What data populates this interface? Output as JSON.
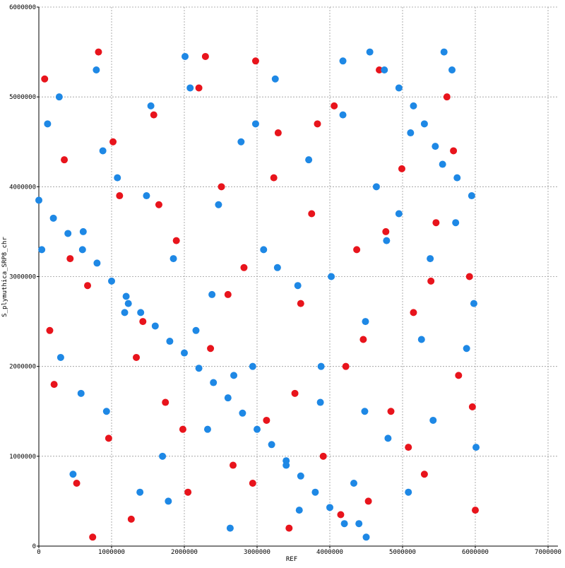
{
  "chart_data": {
    "type": "scatter",
    "x_label": "REF",
    "y_label": "S_plymuthica_SRP8_chr",
    "xlim": [
      0,
      7000000
    ],
    "ylim": [
      0,
      6000000
    ],
    "xticks": [
      0,
      1000000,
      2000000,
      3000000,
      4000000,
      5000000,
      6000000,
      7000000
    ],
    "yticks": [
      0,
      1000000,
      2000000,
      3000000,
      4000000,
      5000000,
      6000000
    ],
    "grid": true,
    "series": [
      {
        "color": "#e8141c",
        "x": [
          80000,
          210000,
          350000,
          520000,
          670000,
          820000,
          960000,
          1110000,
          1270000,
          1430000,
          1580000,
          1740000,
          1890000,
          2050000,
          2200000,
          2360000,
          2510000,
          2670000,
          2820000,
          2980000,
          3130000,
          3290000,
          3440000,
          3600000,
          3750000,
          3910000,
          4060000,
          4220000,
          4370000,
          4530000,
          4680000,
          4840000,
          4990000,
          5150000,
          5300000,
          5460000,
          5610000,
          5770000,
          5920000,
          6000000,
          150000,
          430000,
          740000,
          1020000,
          1340000,
          1650000,
          1980000,
          2290000,
          2600000,
          2940000,
          3230000,
          3520000,
          3830000,
          4150000,
          4460000,
          4770000,
          5080000,
          5390000,
          5700000,
          5960000
        ],
        "y": [
          5200000,
          1800000,
          4300000,
          700000,
          2900000,
          5500000,
          1200000,
          3900000,
          300000,
          2500000,
          4800000,
          1600000,
          3400000,
          600000,
          5100000,
          2200000,
          4000000,
          900000,
          3100000,
          5400000,
          1400000,
          4600000,
          200000,
          2700000,
          3700000,
          1000000,
          4900000,
          2000000,
          3300000,
          500000,
          5300000,
          1500000,
          4200000,
          2600000,
          800000,
          3600000,
          5000000,
          1900000,
          3000000,
          400000,
          2400000,
          3200000,
          100000,
          4500000,
          2100000,
          3800000,
          1300000,
          5450000,
          2800000,
          700000,
          4100000,
          1700000,
          4700000,
          350000,
          2300000,
          3500000,
          1100000,
          2950000,
          4400000,
          1550000
        ]
      },
      {
        "color": "#1e88e5",
        "x": [
          120000,
          300000,
          470000,
          610000,
          790000,
          930000,
          1080000,
          1230000,
          1390000,
          1540000,
          1700000,
          1850000,
          2010000,
          2160000,
          2320000,
          2470000,
          2630000,
          2780000,
          2940000,
          3090000,
          3250000,
          3400000,
          3560000,
          3710000,
          3870000,
          4020000,
          4180000,
          4330000,
          4490000,
          4640000,
          4800000,
          4950000,
          5110000,
          5260000,
          5420000,
          5570000,
          5730000,
          5880000,
          6010000,
          40000,
          280000,
          580000,
          880000,
          1180000,
          1480000,
          1780000,
          2080000,
          2380000,
          2680000,
          2980000,
          3280000,
          3580000,
          3880000,
          4180000,
          4480000,
          4780000,
          5080000,
          5380000,
          5680000,
          5980000,
          0,
          200000,
          400000,
          600000,
          800000,
          1000000,
          1200000,
          1400000,
          1600000,
          1800000,
          2000000,
          2200000,
          2400000,
          2600000,
          2800000,
          3000000,
          3200000,
          3400000,
          3600000,
          3800000,
          4000000,
          4200000,
          4400000,
          4500000,
          4550000,
          4750000,
          4950000,
          5150000,
          5300000,
          5450000,
          5550000,
          5750000,
          5950000
        ],
        "y": [
          4700000,
          2100000,
          800000,
          3500000,
          5300000,
          1500000,
          4100000,
          2700000,
          600000,
          4900000,
          1000000,
          3200000,
          5450000,
          2400000,
          1300000,
          3800000,
          200000,
          4500000,
          2000000,
          3300000,
          5200000,
          900000,
          2900000,
          4300000,
          1600000,
          3000000,
          5400000,
          700000,
          2500000,
          4000000,
          1200000,
          3700000,
          4600000,
          2300000,
          1400000,
          5500000,
          3600000,
          2200000,
          1100000,
          3300000,
          5000000,
          1700000,
          4400000,
          2600000,
          3900000,
          500000,
          5100000,
          2800000,
          1900000,
          4700000,
          3100000,
          400000,
          2000000,
          4800000,
          1500000,
          3400000,
          600000,
          3200000,
          5300000,
          2700000,
          3850000,
          3650000,
          3480000,
          3300000,
          3150000,
          2950000,
          2780000,
          2600000,
          2450000,
          2280000,
          2150000,
          1980000,
          1820000,
          1650000,
          1480000,
          1300000,
          1130000,
          950000,
          780000,
          600000,
          430000,
          250000,
          250000,
          100000,
          5500000,
          5300000,
          5100000,
          4900000,
          4700000,
          4450000,
          4250000,
          4100000,
          3900000
        ]
      }
    ]
  }
}
